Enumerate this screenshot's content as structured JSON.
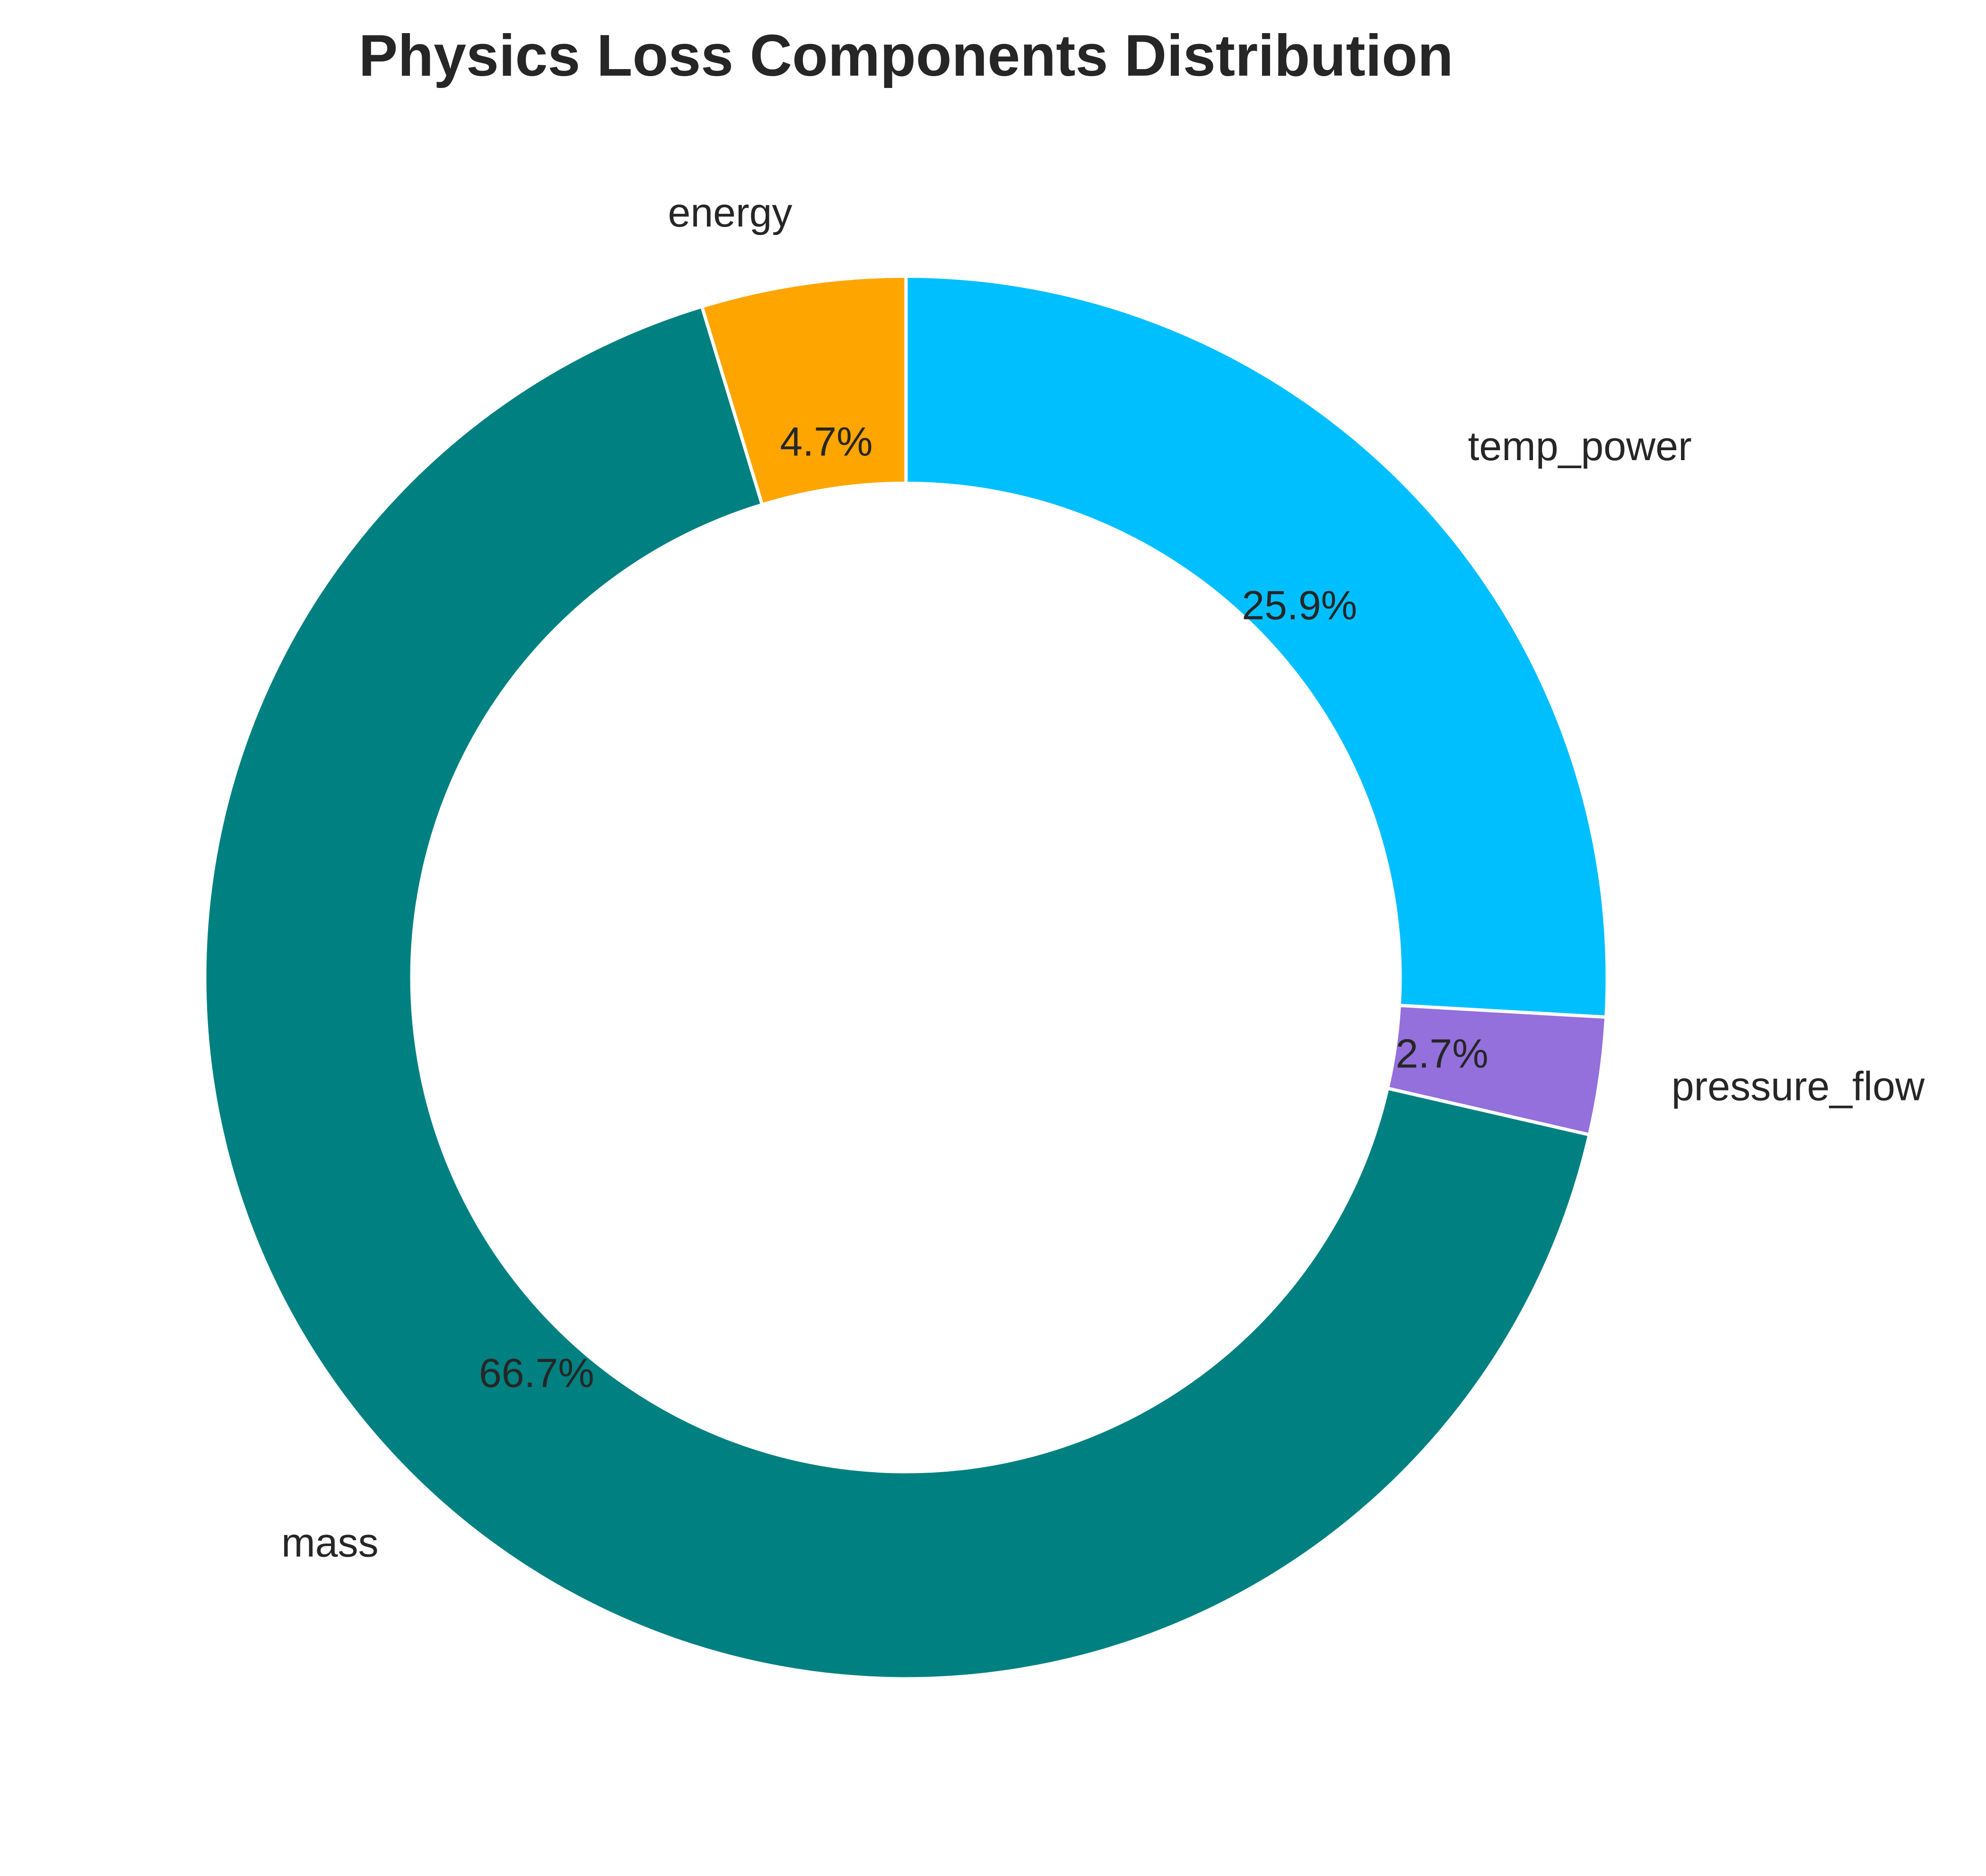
{
  "chart_data": {
    "type": "pie",
    "title": "Physics Loss Components Distribution",
    "donut": true,
    "start": "top",
    "direction": "clockwise",
    "slices": [
      {
        "label": "temp_power",
        "value": 25.9,
        "pct_label": "25.9%",
        "color": "#00BFFF"
      },
      {
        "label": "pressure_flow",
        "value": 2.7,
        "pct_label": "2.7%",
        "color": "#9370DB"
      },
      {
        "label": "mass",
        "value": 66.7,
        "pct_label": "66.7%",
        "color": "#008080"
      },
      {
        "label": "energy",
        "value": 4.7,
        "pct_label": "4.7%",
        "color": "#FFA500"
      }
    ]
  }
}
